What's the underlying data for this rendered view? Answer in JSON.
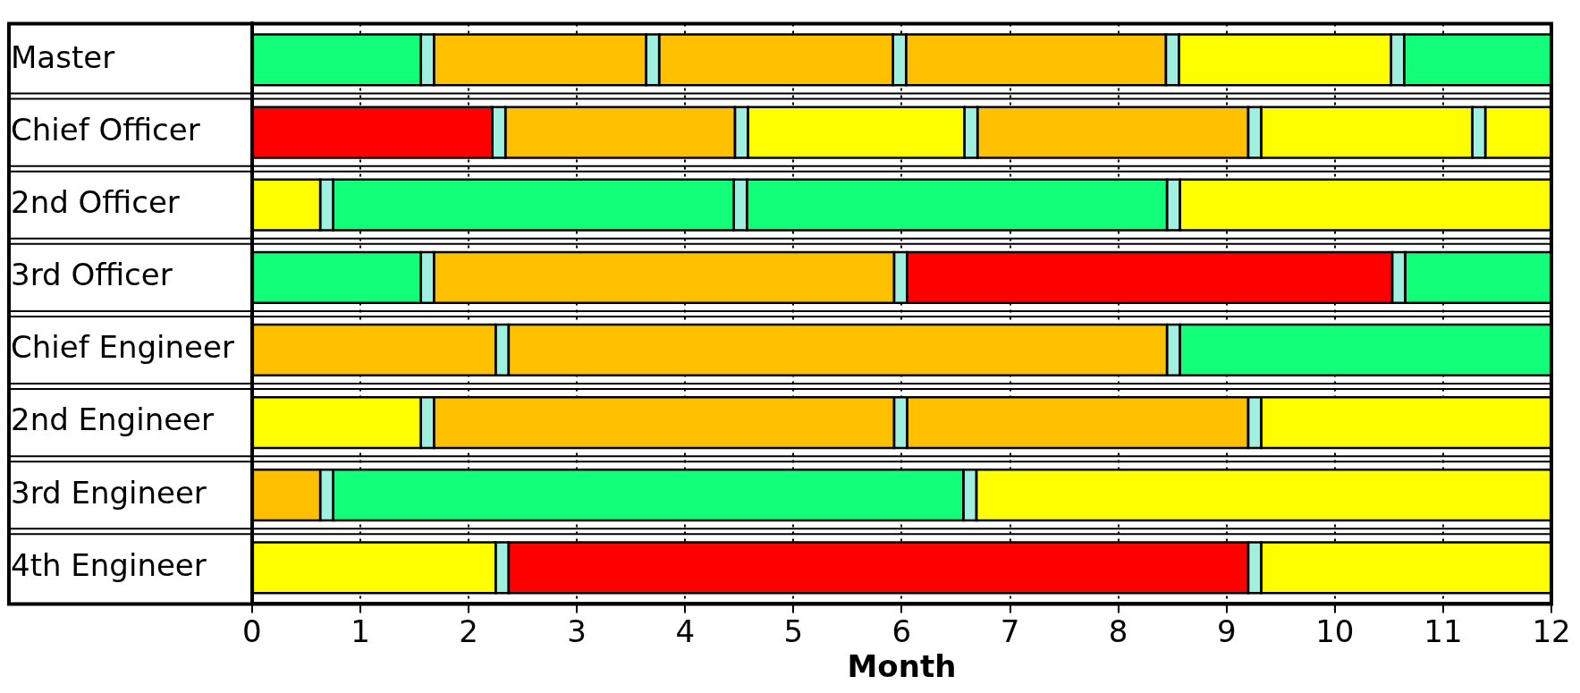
{
  "chart_data": {
    "type": "bar",
    "orientation": "horizontal",
    "stacked": true,
    "xlabel": "Month",
    "categories": [
      "Master",
      "Chief Officer",
      "2nd Officer",
      "3rd Officer",
      "Chief Engineer",
      "2nd Engineer",
      "3rd Engineer",
      "4th Engineer"
    ],
    "xlim": [
      0,
      12
    ],
    "xticks": [
      0,
      1,
      2,
      3,
      4,
      5,
      6,
      7,
      8,
      9,
      10,
      11,
      12
    ],
    "grid": "x",
    "legend": false,
    "series": [
      {
        "values": [
          1.56,
          2.22,
          0.63,
          1.56,
          2.25,
          1.56,
          0.63,
          2.25
        ],
        "colors": [
          "#12ff7a",
          "#ff0000",
          "#ffff00",
          "#12ff7a",
          "#ffc000",
          "#ffff00",
          "#ffc000",
          "#ffff00"
        ]
      },
      {
        "values": [
          0.12,
          0.12,
          0.12,
          0.12,
          0.12,
          0.12,
          0.12,
          0.12
        ],
        "colors": [
          "#a0f0e0",
          "#a0f0e0",
          "#a0f0e0",
          "#a0f0e0",
          "#a0f0e0",
          "#a0f0e0",
          "#a0f0e0",
          "#a0f0e0"
        ]
      },
      {
        "values": [
          1.96,
          2.12,
          3.7,
          4.25,
          6.08,
          4.25,
          5.82,
          6.83
        ],
        "colors": [
          "#ffc000",
          "#ffc000",
          "#12ff7a",
          "#ffc000",
          "#ffc000",
          "#ffc000",
          "#12ff7a",
          "#ff0000"
        ]
      },
      {
        "values": [
          0.12,
          0.12,
          0.12,
          0.12,
          0.12,
          0.12,
          0.12,
          0.12
        ],
        "colors": [
          "#a0f0e0",
          "#a0f0e0",
          "#a0f0e0",
          "#a0f0e0",
          "#a0f0e0",
          "#a0f0e0",
          "#a0f0e0",
          "#a0f0e0"
        ]
      },
      {
        "values": [
          2.16,
          2.0,
          3.88,
          4.48,
          3.43,
          3.15,
          5.31,
          2.68
        ],
        "colors": [
          "#ffc000",
          "#ffff00",
          "#12ff7a",
          "#ff0000",
          "#12ff7a",
          "#ffc000",
          "#ffff00",
          "#ffff00"
        ]
      },
      {
        "values": [
          0.12,
          0.12,
          0.12,
          0.12,
          null,
          0.12,
          null,
          null
        ],
        "colors": [
          "#a0f0e0",
          "#a0f0e0",
          "#a0f0e0",
          "#a0f0e0",
          null,
          "#a0f0e0",
          null,
          null
        ]
      },
      {
        "values": [
          2.4,
          2.5,
          3.43,
          1.35,
          null,
          2.68,
          null,
          null
        ],
        "colors": [
          "#ffc000",
          "#ffc000",
          "#ffff00",
          "#12ff7a",
          null,
          "#ffff00",
          null,
          null
        ]
      },
      {
        "values": [
          0.12,
          0.12,
          null,
          null,
          null,
          null,
          null,
          null
        ],
        "colors": [
          "#a0f0e0",
          "#a0f0e0",
          null,
          null,
          null,
          null,
          null,
          null
        ]
      },
      {
        "values": [
          1.96,
          1.95,
          null,
          null,
          null,
          null,
          null,
          null
        ],
        "colors": [
          "#ffff00",
          "#ffff00",
          null,
          null,
          null,
          null,
          null,
          null
        ]
      },
      {
        "values": [
          0.12,
          0.12,
          null,
          null,
          null,
          null,
          null,
          null
        ],
        "colors": [
          "#a0f0e0",
          "#a0f0e0",
          null,
          null,
          null,
          null,
          null,
          null
        ]
      },
      {
        "values": [
          1.36,
          0.61,
          null,
          null,
          null,
          null,
          null,
          null
        ],
        "colors": [
          "#12ff7a",
          "#ffff00",
          null,
          null,
          null,
          null,
          null,
          null
        ]
      }
    ]
  }
}
